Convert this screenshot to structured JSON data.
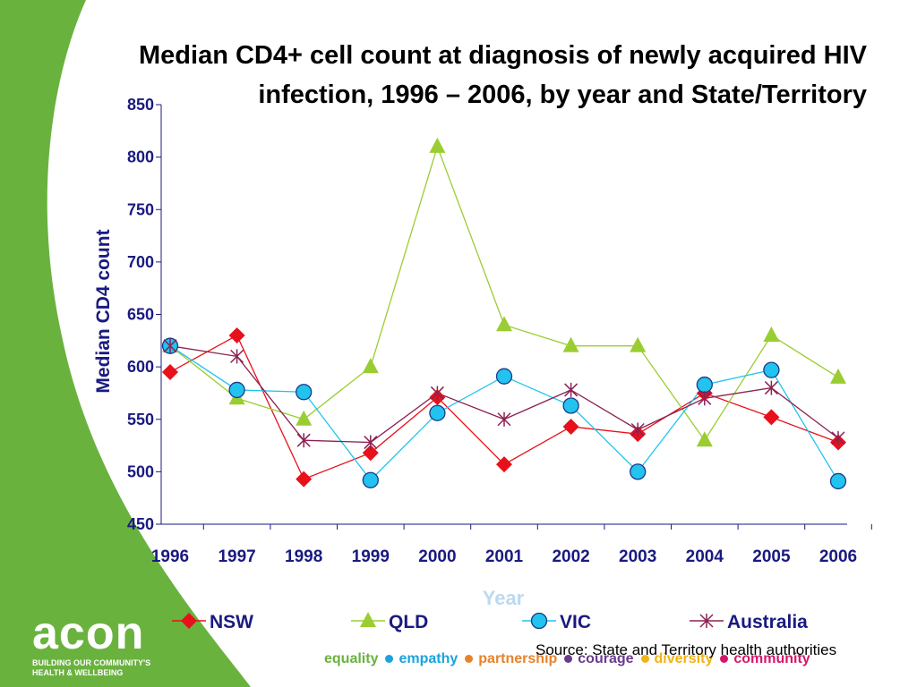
{
  "title": "Median CD4+ cell count at diagnosis of newly acquired HIV infection, 1996 – 2006, by year and State/Territory",
  "source": "Source: State and Territory health authorities",
  "logo": {
    "word": "acon",
    "tagline": "BUILDING OUR COMMUNITY'S HEALTH & WELLBEING"
  },
  "values": [
    {
      "word": "equality",
      "color": "#6ab23e"
    },
    {
      "word": "empathy",
      "color": "#1aa3dc"
    },
    {
      "word": "partnership",
      "color": "#e8822a"
    },
    {
      "word": "courage",
      "color": "#6b3a8c"
    },
    {
      "word": "diversity",
      "color": "#f2b316"
    },
    {
      "word": "community",
      "color": "#d6156c"
    }
  ],
  "colors": {
    "green_band": "#6ab23e",
    "axis_text": "#1a1a80",
    "xlabel": "#bcd9ef"
  },
  "chart_data": {
    "type": "line",
    "x": [
      1996,
      1997,
      1998,
      1999,
      2000,
      2001,
      2002,
      2003,
      2004,
      2005,
      2006
    ],
    "xlabel": "Year",
    "ylabel": "Median CD4 count",
    "ylim": [
      450,
      850
    ],
    "yticks": [
      450,
      500,
      550,
      600,
      650,
      700,
      750,
      800,
      850
    ],
    "legend_position": "bottom",
    "grid": false,
    "series": [
      {
        "name": "NSW",
        "color": "#e8101a",
        "marker": "diamond",
        "values": [
          595,
          630,
          493,
          518,
          571,
          507,
          543,
          536,
          575,
          552,
          528
        ]
      },
      {
        "name": "QLD",
        "color": "#9acd32",
        "marker": "triangle",
        "values": [
          620,
          570,
          550,
          600,
          810,
          640,
          620,
          620,
          530,
          630,
          590
        ]
      },
      {
        "name": "VIC",
        "color": "#22c3ee",
        "marker": "circle",
        "values": [
          620,
          578,
          576,
          492,
          556,
          591,
          563,
          500,
          583,
          597,
          491
        ]
      },
      {
        "name": "Australia",
        "color": "#8b2252",
        "marker": "star",
        "values": [
          620,
          610,
          530,
          528,
          575,
          550,
          578,
          540,
          570,
          580,
          532
        ]
      }
    ]
  }
}
